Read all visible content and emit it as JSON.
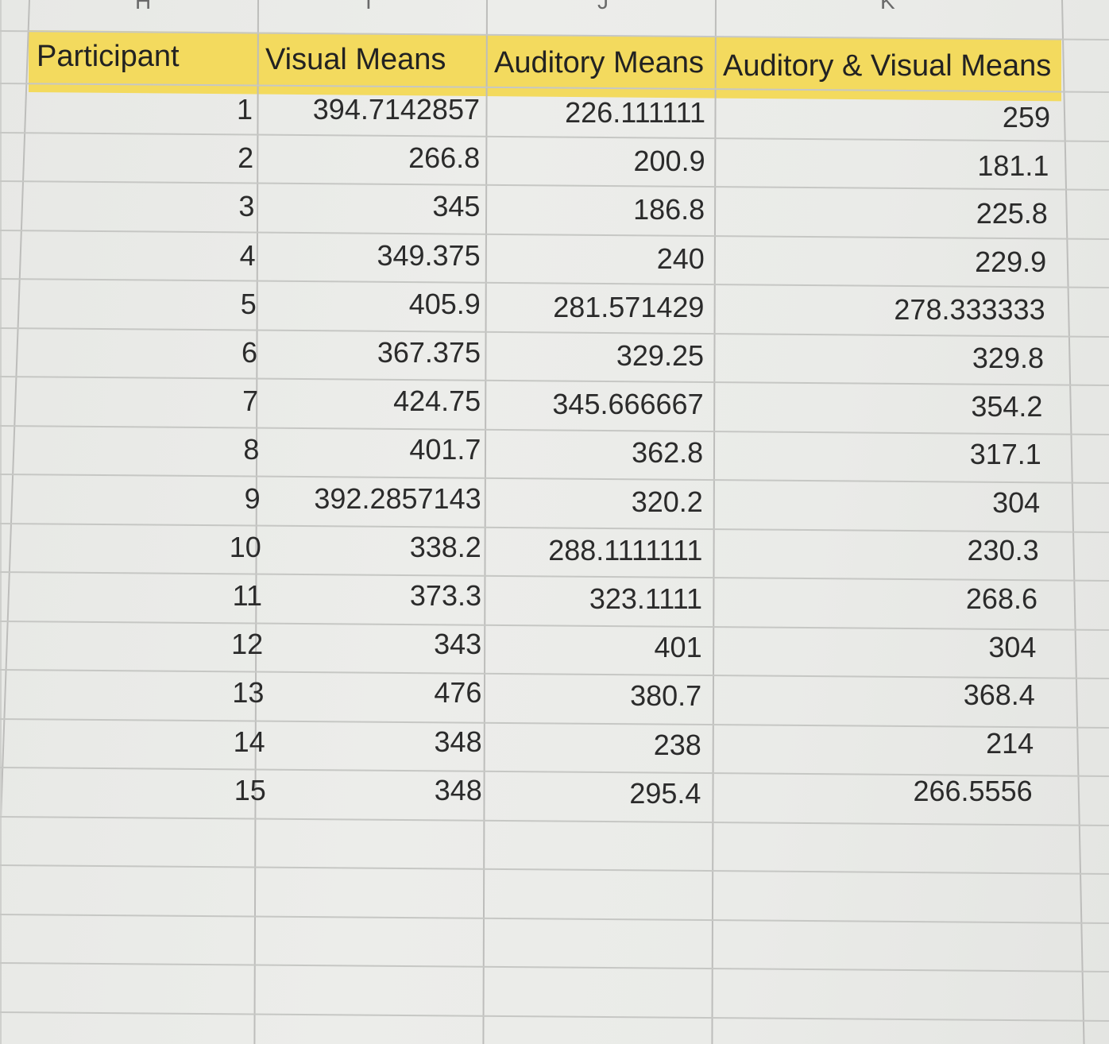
{
  "column_letters": [
    "H",
    "I",
    "J",
    "K"
  ],
  "table": {
    "headers": [
      "Participant",
      "Visual Means",
      "Auditory Means",
      "Auditory & Visual Means"
    ],
    "rows": [
      [
        "1",
        "394.7142857",
        "226.111111",
        "259"
      ],
      [
        "2",
        "266.8",
        "200.9",
        "181.1"
      ],
      [
        "3",
        "345",
        "186.8",
        "225.8"
      ],
      [
        "4",
        "349.375",
        "240",
        "229.9"
      ],
      [
        "5",
        "405.9",
        "281.571429",
        "278.333333"
      ],
      [
        "6",
        "367.375",
        "329.25",
        "329.8"
      ],
      [
        "7",
        "424.75",
        "345.666667",
        "354.2"
      ],
      [
        "8",
        "401.7",
        "362.8",
        "317.1"
      ],
      [
        "9",
        "392.2857143",
        "320.2",
        "304"
      ],
      [
        "10",
        "338.2",
        "288.1111111",
        "230.3"
      ],
      [
        "11",
        "373.3",
        "323.1111",
        "268.6"
      ],
      [
        "12",
        "343",
        "401",
        "304"
      ],
      [
        "13",
        "476",
        "380.7",
        "368.4"
      ],
      [
        "14",
        "348",
        "238",
        "214"
      ],
      [
        "15",
        "348",
        "295.4",
        "266.5556"
      ]
    ]
  },
  "colors": {
    "header_fill": "#f3da5e",
    "gridline": "#c6c7c4",
    "text": "#2b2b2b"
  }
}
